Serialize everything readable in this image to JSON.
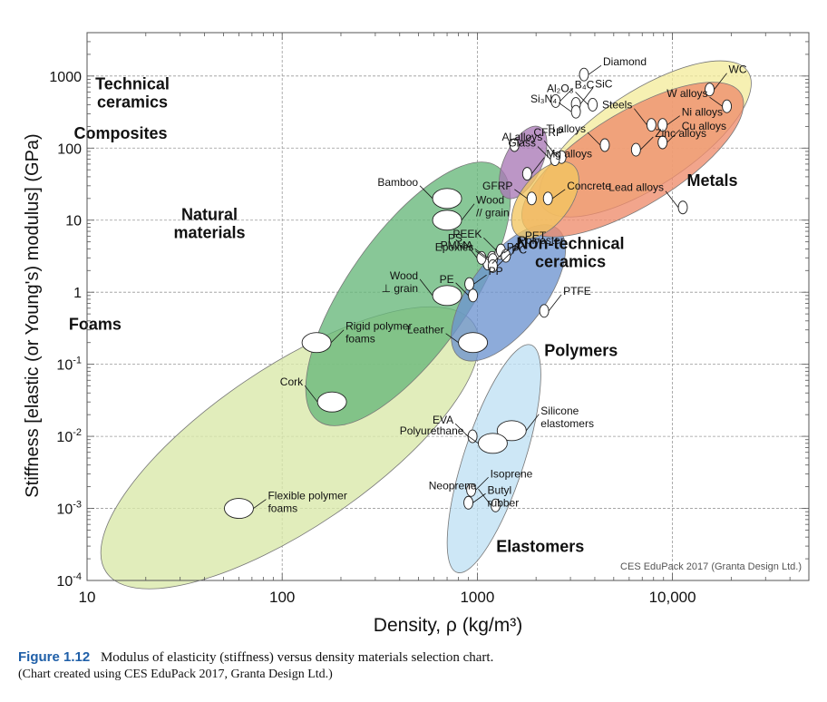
{
  "chart_data": {
    "type": "scatter",
    "xlabel": "Density, ρ  (kg/m³)",
    "ylabel": "Stiffness [elastic (or Young's) modulus] (GPa)",
    "x_scale": "log",
    "y_scale": "log",
    "xlim": [
      10,
      50000
    ],
    "ylim": [
      0.0001,
      4000
    ],
    "x_ticks": [
      {
        "value": 10,
        "label": "10"
      },
      {
        "value": 100,
        "label": "100"
      },
      {
        "value": 1000,
        "label": "1000"
      },
      {
        "value": 10000,
        "label": "10,000"
      }
    ],
    "y_ticks": [
      {
        "value": 1000,
        "base": "1000",
        "exp": ""
      },
      {
        "value": 100,
        "base": "100",
        "exp": ""
      },
      {
        "value": 10,
        "base": "10",
        "exp": ""
      },
      {
        "value": 1,
        "base": "1",
        "exp": ""
      },
      {
        "value": 0.1,
        "base": "10",
        "exp": "-1"
      },
      {
        "value": 0.01,
        "base": "10",
        "exp": "-2"
      },
      {
        "value": 0.001,
        "base": "10",
        "exp": "-3"
      },
      {
        "value": 0.0001,
        "base": "10",
        "exp": "-4"
      }
    ],
    "grid": true,
    "watermark": "CES EduPack 2017 (Granta Design Ltd.)",
    "families": [
      {
        "name": "Foams",
        "color": "#d8e8a8",
        "x": [
          12,
          1000
        ],
        "y": [
          0.00012,
          0.4
        ],
        "anchor": [
          11,
          0.3
        ]
      },
      {
        "name": "Natural\nmaterials",
        "color": "#66b77a",
        "x": [
          150,
          1300
        ],
        "y": [
          0.015,
          60
        ],
        "anchor": [
          1.35,
          10
        ]
      },
      {
        "name": "Polymers",
        "color": "#6d93cf",
        "x": [
          800,
          2600
        ],
        "y": [
          0.12,
          8
        ],
        "anchor": [
          3400,
          0.13
        ]
      },
      {
        "name": "Elastomers",
        "color": "#bfe0f3",
        "x": [
          780,
          1900
        ],
        "y": [
          0.00012,
          0.2
        ],
        "anchor": [
          2100,
          0.00025
        ]
      },
      {
        "name": "Composites",
        "color": "#a978b6",
        "x": [
          1400,
          2100
        ],
        "y": [
          20,
          200
        ],
        "anchor": [
          0.37,
          135
        ]
      },
      {
        "name": "Technical\nceramics",
        "color": "#f4ec9c",
        "x": [
          2100,
          25000
        ],
        "y": [
          15,
          1200
        ],
        "anchor": [
          0.5,
          650
        ]
      },
      {
        "name": "Metals",
        "color": "#ee8c6c",
        "x": [
          1700,
          23000
        ],
        "y": [
          8,
          600
        ],
        "anchor": [
          16000,
          30
        ]
      },
      {
        "name": "Non-technical\nceramics",
        "color": "#f2c560",
        "x": [
          1600,
          3100
        ],
        "y": [
          6,
          60
        ],
        "anchor": [
          3000,
          4
        ]
      }
    ],
    "materials": [
      {
        "name": "Diamond",
        "x": 3520,
        "y": 1050
      },
      {
        "name": "Al₂O₃",
        "x": 3900,
        "y": 400
      },
      {
        "name": "SiC",
        "x": 3200,
        "y": 410
      },
      {
        "name": "Si₃N₄",
        "x": 3200,
        "y": 320
      },
      {
        "name": "B₄C",
        "x": 2520,
        "y": 450
      },
      {
        "name": "Steels",
        "x": 7800,
        "y": 210
      },
      {
        "name": "Ni alloys",
        "x": 8900,
        "y": 210
      },
      {
        "name": "Ti alloys",
        "x": 4500,
        "y": 110
      },
      {
        "name": "WC",
        "x": 15500,
        "y": 650
      },
      {
        "name": "W alloys",
        "x": 19000,
        "y": 380
      },
      {
        "name": "Cu alloys",
        "x": 8900,
        "y": 120
      },
      {
        "name": "Al alloys",
        "x": 2700,
        "y": 75
      },
      {
        "name": "CFRP",
        "x": 1550,
        "y": 110
      },
      {
        "name": "Glass",
        "x": 2500,
        "y": 70
      },
      {
        "name": "Mg alloys",
        "x": 1800,
        "y": 44
      },
      {
        "name": "GFRP",
        "x": 1900,
        "y": 20
      },
      {
        "name": "Zinc alloys",
        "x": 6500,
        "y": 95
      },
      {
        "name": "Lead alloys",
        "x": 11300,
        "y": 15
      },
      {
        "name": "Concrete",
        "x": 2300,
        "y": 20
      },
      {
        "name": "Bamboo",
        "x": 700,
        "y": 20
      },
      {
        "name": "Wood\n// grain",
        "x": 700,
        "y": 10
      },
      {
        "name": "PMMA",
        "x": 1190,
        "y": 3
      },
      {
        "name": "PA",
        "x": 1130,
        "y": 2.5
      },
      {
        "name": "PS",
        "x": 1050,
        "y": 3
      },
      {
        "name": "Polyester",
        "x": 1300,
        "y": 3.5
      },
      {
        "name": "PEEK",
        "x": 1320,
        "y": 3.8
      },
      {
        "name": "PET",
        "x": 1400,
        "y": 3.2
      },
      {
        "name": "Epoxies",
        "x": 1200,
        "y": 2.8
      },
      {
        "name": "PC",
        "x": 1200,
        "y": 2.3
      },
      {
        "name": "Wood\n⊥ grain",
        "x": 700,
        "y": 0.9
      },
      {
        "name": "PP",
        "x": 910,
        "y": 1.3
      },
      {
        "name": "PE",
        "x": 950,
        "y": 0.9
      },
      {
        "name": "PTFE",
        "x": 2200,
        "y": 0.55
      },
      {
        "name": "Leather",
        "x": 950,
        "y": 0.2
      },
      {
        "name": "Rigid polymer\nfoams",
        "x": 150,
        "y": 0.2
      },
      {
        "name": "Cork",
        "x": 180,
        "y": 0.03
      },
      {
        "name": "Flexible polymer\nfoams",
        "x": 60,
        "y": 0.001
      },
      {
        "name": "EVA",
        "x": 945,
        "y": 0.01
      },
      {
        "name": "Silicone\nelastomers",
        "x": 1500,
        "y": 0.012
      },
      {
        "name": "Polyurethane",
        "x": 1200,
        "y": 0.008
      },
      {
        "name": "Isoprene",
        "x": 930,
        "y": 0.0018
      },
      {
        "name": "Neoprene",
        "x": 1240,
        "y": 0.0011
      },
      {
        "name": "Butyl\nrubber",
        "x": 900,
        "y": 0.0012
      }
    ]
  },
  "caption": {
    "figure": "Figure 1.12",
    "text": "Modulus of elasticity (stiffness) versus density materials selection chart.",
    "credit": "(Chart created using CES EduPack 2017, Granta Design Ltd.)"
  }
}
